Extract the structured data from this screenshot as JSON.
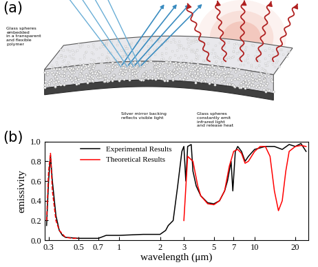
{
  "panel_a": {
    "label": "(a)",
    "texts": [
      "Glass spheres\nembedded\nin a transparent\nand flexible\npolymer",
      "Silver mirror backing\nreflects visible light",
      "Glass spheres\nconstantly emit\ninfrared light\nand release heat"
    ]
  },
  "chart_data": {
    "type": "line",
    "panel_label": "(b)",
    "x_label": "wavelength (μm)",
    "y_label": "emissivity",
    "log": "x",
    "legend": "upper left",
    "xlim": [
      0.28,
      25
    ],
    "xticks": [
      0.3,
      0.5,
      0.7,
      1,
      2,
      3,
      5,
      7,
      10,
      20
    ],
    "ylim": [
      0.0,
      1.0
    ],
    "yticks": [
      {
        "value": 0.0,
        "label": "0.0"
      },
      {
        "value": 0.2,
        "label": "0.2"
      },
      {
        "value": 0.4,
        "label": "0.4"
      },
      {
        "value": 0.6,
        "label": "0.6"
      },
      {
        "value": 0.8,
        "label": "0.8"
      },
      {
        "value": 1.0,
        "label": "1.0"
      }
    ],
    "series": [
      {
        "name": "Experimental Results",
        "color": "#000000",
        "line_style": "solid",
        "x": [
          0.29,
          0.3,
          0.31,
          0.32,
          0.34,
          0.36,
          0.38,
          0.4,
          0.5,
          0.7,
          0.8,
          1,
          1.5,
          2,
          2.2,
          2.3,
          2.5,
          2.7,
          2.9,
          3.0,
          3.1,
          3.2,
          3.4,
          3.5,
          3.7,
          4,
          4.5,
          5,
          5.5,
          6,
          6.3,
          6.7,
          6.9,
          7.2,
          7.5,
          8,
          8.5,
          9,
          10,
          12,
          14,
          16,
          18,
          20,
          22,
          24
        ],
        "values": [
          0.15,
          0.6,
          0.86,
          0.6,
          0.25,
          0.1,
          0.05,
          0.03,
          0.02,
          0.02,
          0.05,
          0.05,
          0.06,
          0.06,
          0.1,
          0.15,
          0.2,
          0.55,
          0.9,
          0.95,
          0.6,
          0.95,
          0.97,
          0.7,
          0.55,
          0.45,
          0.38,
          0.37,
          0.4,
          0.5,
          0.6,
          0.8,
          0.5,
          0.9,
          0.95,
          0.9,
          0.8,
          0.85,
          0.92,
          0.95,
          0.95,
          0.92,
          0.97,
          0.95,
          0.98,
          0.9
        ]
      },
      {
        "color": "#ff0000",
        "line_style": "dashed",
        "x": [
          0.29,
          0.3,
          0.31,
          0.32,
          0.34,
          0.36,
          0.4,
          0.45,
          0.5
        ],
        "values": [
          0.2,
          0.7,
          0.88,
          0.5,
          0.2,
          0.1,
          0.03,
          0.02,
          0.02
        ]
      },
      {
        "name": "Theoretical Results",
        "color": "#ff0000",
        "line_style": "solid",
        "x": [
          3.0,
          3.2,
          3.5,
          3.8,
          4,
          4.5,
          5,
          5.5,
          6,
          6.5,
          7,
          7.5,
          8,
          8.5,
          9,
          10,
          11,
          12,
          13,
          14,
          15,
          16,
          17,
          18,
          20,
          22,
          24
        ],
        "values": [
          0.2,
          0.85,
          0.8,
          0.55,
          0.45,
          0.37,
          0.36,
          0.4,
          0.5,
          0.75,
          0.9,
          0.92,
          0.88,
          0.78,
          0.8,
          0.9,
          0.95,
          0.95,
          0.85,
          0.5,
          0.3,
          0.4,
          0.7,
          0.9,
          0.95,
          0.96,
          0.95
        ]
      }
    ]
  }
}
